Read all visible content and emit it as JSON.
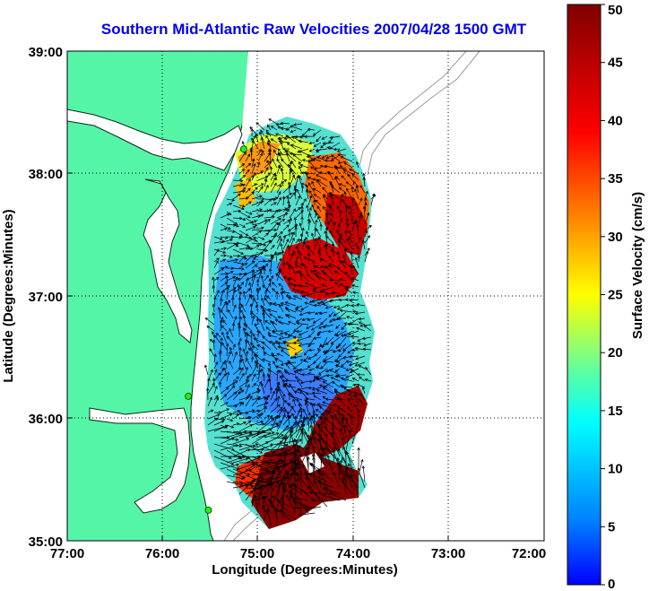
{
  "title": "Southern Mid-Atlantic Raw Velocities 2007/04/28 1500 GMT",
  "axes": {
    "xlabel": "Longitude (Degrees:Minutes)",
    "ylabel": "Latitude (Degrees:Minutes)",
    "xticks": [
      "77:00",
      "76:00",
      "75:00",
      "74:00",
      "73:00",
      "72:00"
    ],
    "yticks": [
      "39:00",
      "38:00",
      "37:00",
      "36:00",
      "35:00"
    ],
    "xlim": [
      -77,
      -72
    ],
    "ylim": [
      35,
      39
    ],
    "grid": true
  },
  "colorbar": {
    "label": "Surface Velocity (cm/s)",
    "ticks": [
      "50",
      "45",
      "40",
      "35",
      "30",
      "25",
      "20",
      "15",
      "10",
      "5",
      "0"
    ],
    "range": [
      0,
      50
    ],
    "colormap": "jet"
  },
  "colors": {
    "land": "#55f5a8",
    "title": "#0000ee",
    "station": "#22ee22"
  },
  "stations": [
    {
      "lon": -75.15,
      "lat": 38.2
    },
    {
      "lon": -75.73,
      "lat": 36.18
    },
    {
      "lon": -75.52,
      "lat": 35.25
    }
  ]
}
